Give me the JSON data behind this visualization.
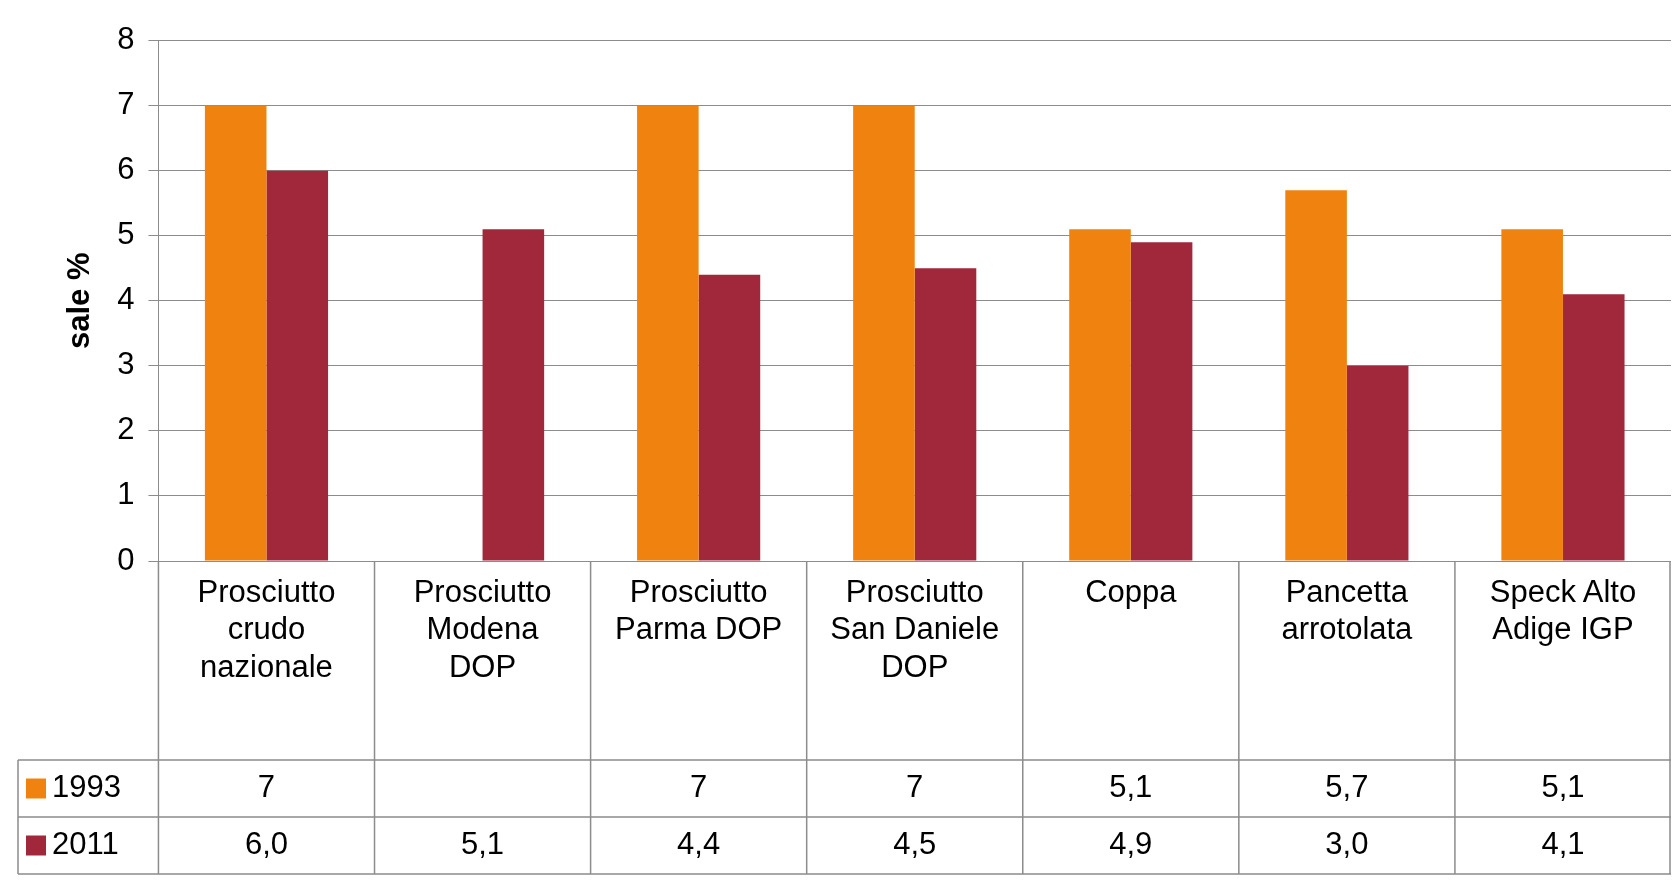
{
  "chart_data": {
    "type": "bar",
    "ylabel": "sale %",
    "categories": [
      "Prosciutto crudo nazionale",
      "Prosciutto Modena DOP",
      "Prosciutto Parma DOP",
      "Prosciutto San Daniele DOP",
      "Coppa",
      "Pancetta arrotolata",
      "Speck Alto Adige IGP"
    ],
    "series": [
      {
        "name": "1993",
        "color": "#f0820f",
        "values": [
          7,
          null,
          7,
          7,
          5.1,
          5.7,
          5.1
        ],
        "value_labels": [
          "7",
          null,
          "7",
          "7",
          "5,1",
          "5,7",
          "5,1"
        ]
      },
      {
        "name": "2011",
        "color": "#a1283a",
        "values": [
          6.0,
          5.1,
          4.4,
          4.5,
          4.9,
          3.0,
          4.1
        ],
        "value_labels": [
          "6,0",
          "5,1",
          "4,4",
          "4,5",
          "4,9",
          "3,0",
          "4,1"
        ]
      }
    ],
    "ylim": [
      0,
      8
    ],
    "yticks": [
      0,
      1,
      2,
      3,
      4,
      5,
      6,
      7,
      8
    ],
    "grid": "y",
    "legend": "bottom left"
  }
}
